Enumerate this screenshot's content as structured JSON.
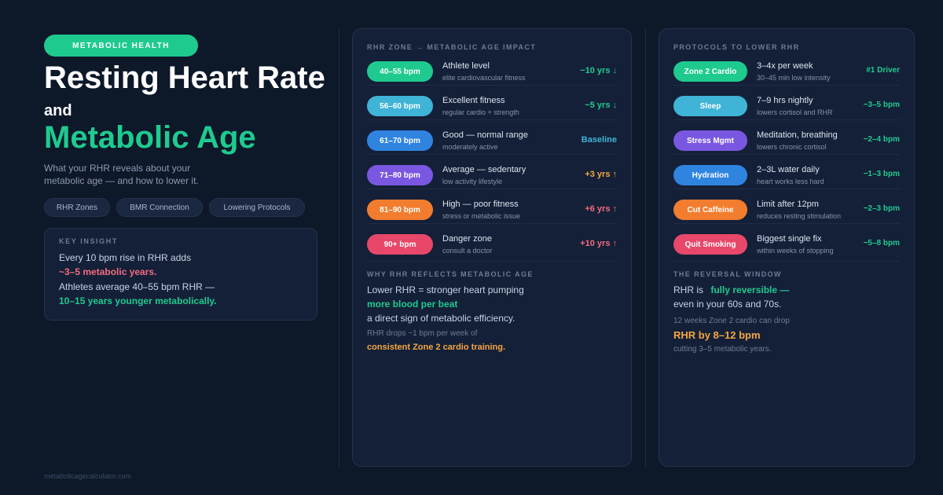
{
  "left": {
    "badge": "METABOLIC HEALTH",
    "title_line1": "Resting Heart Rate",
    "title_line2": "and",
    "title_line3": "Metabolic Age",
    "subtitle_line1": "What your RHR reveals about your",
    "subtitle_line2": "metabolic age — and how to lower it.",
    "pills": [
      "RHR Zones",
      "BMR Connection",
      "Lowering Protocols"
    ],
    "insight": {
      "header": "KEY INSIGHT",
      "line1": "Every 10 bpm rise in RHR adds",
      "line2": "~3–5 metabolic years.",
      "line3": "Athletes average 40–55 bpm RHR —",
      "line4": "10–15 years younger metabolically."
    },
    "footer": "metabolicagecalculator.com"
  },
  "zones": {
    "header": "RHR ZONE → METABOLIC AGE IMPACT",
    "rows": [
      {
        "pill": "40–55 bpm",
        "title": "Athlete level",
        "sub": "elite cardiovascular fitness",
        "value": "−10 yrs ↓",
        "color": "#1fca8f",
        "value_color": "#1fca8f"
      },
      {
        "pill": "56–60 bpm",
        "title": "Excellent fitness",
        "sub": "regular cardio + strength",
        "value": "−5 yrs ↓",
        "color": "#3fb4d6",
        "value_color": "#1fca8f"
      },
      {
        "pill": "61–70 bpm",
        "title": "Good — normal range",
        "sub": "moderately active",
        "value": "Baseline",
        "color": "#2f84e0",
        "value_color": "#3fb4d6"
      },
      {
        "pill": "71–80 bpm",
        "title": "Average — sedentary",
        "sub": "low activity lifestyle",
        "value": "+3 yrs ↑",
        "color": "#7a57e0",
        "value_color": "#f5a640"
      },
      {
        "pill": "81–90 bpm",
        "title": "High — poor fitness",
        "sub": "stress or metabolic issue",
        "value": "+6 yrs ↑",
        "color": "#f27d2e",
        "value_color": "#f36b7f"
      },
      {
        "pill": "90+ bpm",
        "title": "Danger zone",
        "sub": "consult a doctor",
        "value": "+10 yrs ↑",
        "color": "#e8476a",
        "value_color": "#f36b7f"
      }
    ],
    "why": {
      "header": "WHY RHR REFLECTS METABOLIC AGE",
      "line1": "Lower RHR = stronger heart pumping",
      "line2": "more blood per beat",
      "line3": "a direct sign of metabolic efficiency.",
      "line4": "RHR drops ~1 bpm per week of",
      "line5": "consistent Zone 2 cardio training."
    }
  },
  "protocols": {
    "header": "PROTOCOLS TO LOWER RHR",
    "rows": [
      {
        "pill": "Zone 2 Cardio",
        "title": "3–4x per week",
        "sub": "30–45 min low intensity",
        "value": "#1 Driver",
        "color": "#1fca8f"
      },
      {
        "pill": "Sleep",
        "title": "7–9 hrs nightly",
        "sub": "lowers cortisol and RHR",
        "value": "−3–5 bpm",
        "color": "#3fb4d6"
      },
      {
        "pill": "Stress Mgmt",
        "title": "Meditation, breathing",
        "sub": "lowers chronic cortisol",
        "value": "−2–4 bpm",
        "color": "#7a57e0"
      },
      {
        "pill": "Hydration",
        "title": "2–3L water daily",
        "sub": "heart works less hard",
        "value": "−1–3 bpm",
        "color": "#2f84e0"
      },
      {
        "pill": "Cut Caffeine",
        "title": "Limit after 12pm",
        "sub": "reduces resting stimulation",
        "value": "−2–3 bpm",
        "color": "#f27d2e"
      },
      {
        "pill": "Quit Smoking",
        "title": "Biggest single fix",
        "sub": "within weeks of stopping",
        "value": "−5–8 bpm",
        "color": "#e8476a"
      }
    ],
    "value_color": "#1fca8f",
    "reversal": {
      "header": "THE REVERSAL WINDOW",
      "line1a": "RHR is",
      "line1b": "fully reversible —",
      "line2": "even in your 60s and 70s.",
      "line3": "12 weeks Zone 2 cardio can drop",
      "line4": "RHR by 8–12 bpm",
      "line5": "cutting 3–5 metabolic years."
    }
  }
}
